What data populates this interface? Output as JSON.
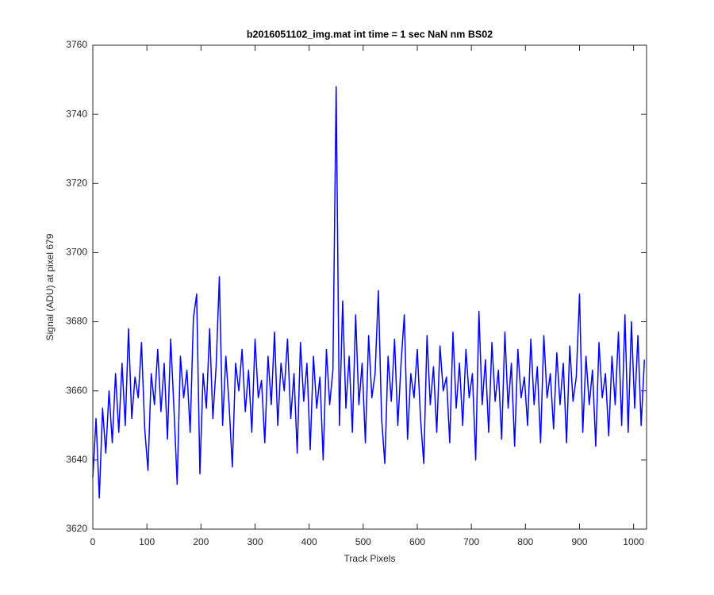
{
  "chart_data": {
    "type": "line",
    "title": "b2016051102_img.mat int time = 1 sec  NaN nm BS02",
    "x_label": "Track Pixels",
    "y_label": "Signal (ADU) at pixel 679",
    "xlim": [
      0,
      1024
    ],
    "ylim": [
      3620,
      3760
    ],
    "xticks": [
      0,
      100,
      200,
      300,
      400,
      500,
      600,
      700,
      800,
      900,
      1000
    ],
    "yticks": [
      3620,
      3640,
      3660,
      3680,
      3700,
      3720,
      3740,
      3760
    ],
    "grid": false,
    "x": [
      0,
      6,
      12,
      18,
      24,
      30,
      36,
      42,
      48,
      54,
      60,
      66,
      72,
      78,
      84,
      90,
      96,
      102,
      108,
      114,
      120,
      126,
      132,
      138,
      144,
      150,
      156,
      162,
      168,
      174,
      180,
      186,
      192,
      198,
      204,
      210,
      216,
      222,
      228,
      234,
      240,
      246,
      252,
      258,
      264,
      270,
      276,
      282,
      288,
      294,
      300,
      306,
      312,
      318,
      324,
      330,
      336,
      342,
      348,
      354,
      360,
      366,
      372,
      378,
      384,
      390,
      396,
      402,
      408,
      414,
      420,
      426,
      432,
      438,
      444,
      450,
      456,
      462,
      468,
      474,
      480,
      486,
      492,
      498,
      504,
      510,
      516,
      522,
      528,
      534,
      540,
      546,
      552,
      558,
      564,
      570,
      576,
      582,
      588,
      594,
      600,
      606,
      612,
      618,
      624,
      630,
      636,
      642,
      648,
      654,
      660,
      666,
      672,
      678,
      684,
      690,
      696,
      702,
      708,
      714,
      720,
      726,
      732,
      738,
      744,
      750,
      756,
      762,
      768,
      774,
      780,
      786,
      792,
      798,
      804,
      810,
      816,
      822,
      828,
      834,
      840,
      846,
      852,
      858,
      864,
      870,
      876,
      882,
      888,
      894,
      900,
      906,
      912,
      918,
      924,
      930,
      936,
      942,
      948,
      954,
      960,
      966,
      972,
      978,
      984,
      990,
      996,
      1002,
      1008,
      1014,
      1020
    ],
    "series": [
      {
        "color": "#0000ff",
        "values": [
          3635,
          3652,
          3629,
          3655,
          3642,
          3660,
          3645,
          3665,
          3648,
          3668,
          3650,
          3678,
          3652,
          3664,
          3658,
          3674,
          3649,
          3637,
          3665,
          3656,
          3672,
          3654,
          3668,
          3646,
          3675,
          3655,
          3633,
          3670,
          3658,
          3666,
          3648,
          3681,
          3688,
          3636,
          3665,
          3655,
          3678,
          3652,
          3667,
          3693,
          3650,
          3670,
          3656,
          3638,
          3668,
          3660,
          3672,
          3654,
          3666,
          3648,
          3675,
          3658,
          3663,
          3645,
          3670,
          3656,
          3677,
          3650,
          3668,
          3660,
          3675,
          3652,
          3665,
          3642,
          3674,
          3657,
          3668,
          3643,
          3670,
          3655,
          3664,
          3640,
          3672,
          3656,
          3666,
          3748,
          3650,
          3686,
          3655,
          3670,
          3648,
          3682,
          3656,
          3668,
          3645,
          3676,
          3658,
          3665,
          3689,
          3652,
          3639,
          3670,
          3657,
          3675,
          3650,
          3668,
          3682,
          3646,
          3665,
          3658,
          3672,
          3652,
          3639,
          3676,
          3656,
          3667,
          3648,
          3673,
          3660,
          3664,
          3645,
          3677,
          3655,
          3668,
          3650,
          3672,
          3658,
          3665,
          3640,
          3683,
          3656,
          3669,
          3648,
          3674,
          3657,
          3666,
          3646,
          3677,
          3655,
          3668,
          3644,
          3672,
          3658,
          3664,
          3650,
          3675,
          3656,
          3667,
          3645,
          3676,
          3658,
          3665,
          3649,
          3671,
          3656,
          3668,
          3645,
          3673,
          3657,
          3664,
          3688,
          3648,
          3670,
          3656,
          3666,
          3644,
          3674,
          3658,
          3665,
          3647,
          3670,
          3656,
          3677,
          3650,
          3682,
          3648,
          3680,
          3655,
          3676,
          3650,
          3669
        ]
      }
    ]
  }
}
